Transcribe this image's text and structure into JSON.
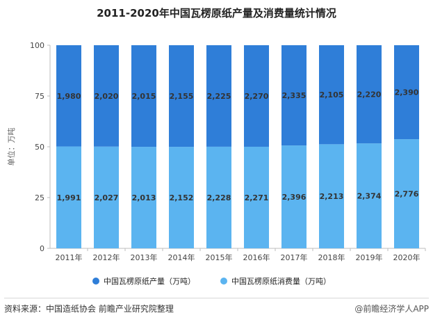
{
  "chart_data": {
    "type": "bar",
    "stacked": "percent",
    "title": "2011-2020年中国瓦楞原纸产量及消费量统计情况",
    "ylabel": "单位：万吨",
    "ylim": [
      0,
      100
    ],
    "yticks": [
      0,
      25,
      50,
      75,
      100
    ],
    "categories": [
      "2011年",
      "2012年",
      "2013年",
      "2014年",
      "2015年",
      "2016年",
      "2017年",
      "2018年",
      "2019年",
      "2020年"
    ],
    "series": [
      {
        "name": "中国瓦楞原纸消费量（万吨）",
        "color": "#5bb4f0",
        "values": [
          1991,
          2027,
          2013,
          2152,
          2228,
          2271,
          2396,
          2213,
          2374,
          2776
        ],
        "labels": [
          "1,991",
          "2,027",
          "2,013",
          "2,152",
          "2,228",
          "2,271",
          "2,396",
          "2,213",
          "2,374",
          "2,776"
        ]
      },
      {
        "name": "中国瓦楞原纸产量（万吨）",
        "color": "#2f7ed8",
        "values": [
          1980,
          2020,
          2015,
          2155,
          2225,
          2270,
          2335,
          2105,
          2220,
          2390
        ],
        "labels": [
          "1,980",
          "2,020",
          "2,015",
          "2,155",
          "2,225",
          "2,270",
          "2,335",
          "2,105",
          "2,220",
          "2,390"
        ]
      }
    ],
    "legend": {
      "placement": "bottom",
      "items": [
        {
          "name": "中国瓦楞原纸产量（万吨）",
          "color": "#2f7ed8"
        },
        {
          "name": "中国瓦楞原纸消费量（万吨）",
          "color": "#5bb4f0"
        }
      ]
    },
    "grid": false
  },
  "footer": {
    "source": "资料来源：中国造纸协会 前瞻产业研究院整理",
    "brand": "@前瞻经济学人APP"
  }
}
